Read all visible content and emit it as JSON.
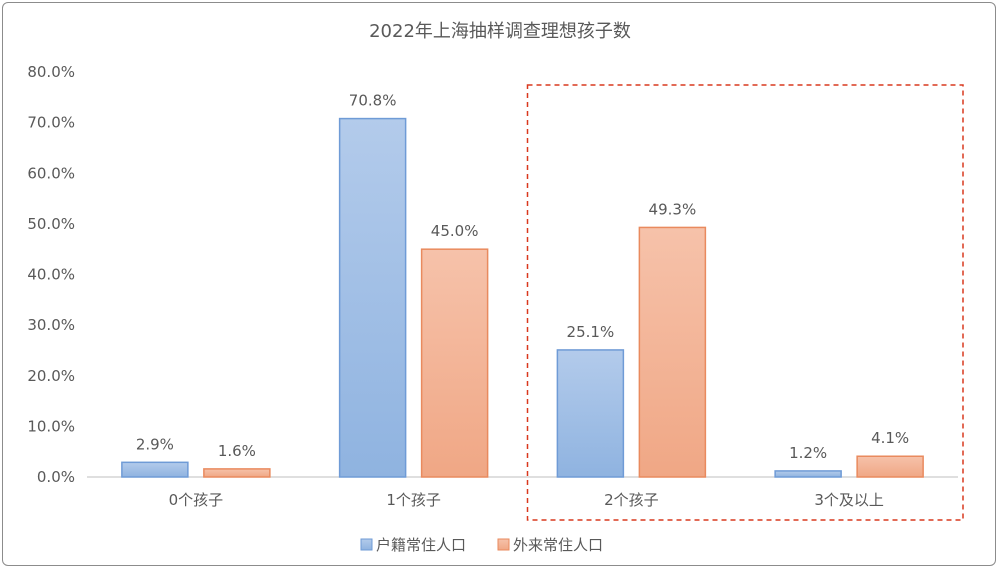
{
  "chart_data": {
    "type": "bar",
    "title": "2022年上海抽样调查理想孩子数",
    "categories": [
      "0个孩子",
      "1个孩子",
      "2个孩子",
      "3个及以上"
    ],
    "series": [
      {
        "name": "户籍常住人口",
        "values": [
          2.9,
          70.8,
          25.1,
          1.2
        ],
        "labels": [
          "2.9%",
          "70.8%",
          "25.1%",
          "1.2%"
        ],
        "color": "#8fb3e0"
      },
      {
        "name": "外来常住人口",
        "values": [
          1.6,
          45.0,
          49.3,
          4.1
        ],
        "labels": [
          "1.6%",
          "45.0%",
          "49.3%",
          "4.1%"
        ],
        "color": "#f0a785"
      }
    ],
    "ylim": [
      0,
      80
    ],
    "yticks": [
      "0.0%",
      "10.0%",
      "20.0%",
      "30.0%",
      "40.0%",
      "50.0%",
      "60.0%",
      "70.0%",
      "80.0%"
    ],
    "grid": false,
    "legend": "bottom",
    "highlight": {
      "categories": [
        "2个孩子",
        "3个及以上"
      ],
      "style": "dashed-box",
      "color": "#d9381e"
    }
  }
}
